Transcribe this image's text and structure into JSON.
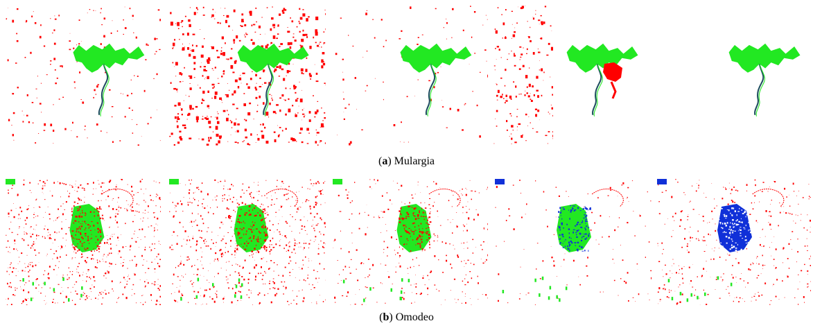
{
  "figure": {
    "subfigures": [
      {
        "letter": "a",
        "name": "Mulargia",
        "panel_count": 6,
        "panels": [
          {
            "noise": "medium",
            "target": "lake-green",
            "extra": "none"
          },
          {
            "noise": "heavy",
            "target": "lake-green",
            "extra": "none"
          },
          {
            "noise": "light",
            "target": "lake-green",
            "extra": "none"
          },
          {
            "noise": "medium-left",
            "target": "none",
            "extra": "none"
          },
          {
            "noise": "none",
            "target": "lake-green",
            "extra": "red-blob"
          },
          {
            "noise": "none",
            "target": "lake-green",
            "extra": "none"
          }
        ]
      },
      {
        "letter": "b",
        "name": "Omodeo",
        "panel_count": 5,
        "panels": [
          {
            "noise": "dense",
            "target": "lake-green",
            "extra": "none"
          },
          {
            "noise": "dense",
            "target": "lake-green",
            "extra": "none"
          },
          {
            "noise": "light",
            "target": "lake-green",
            "extra": "none"
          },
          {
            "noise": "sparse",
            "target": "lake-blue-green",
            "extra": "none"
          },
          {
            "noise": "medium",
            "target": "lake-blue",
            "extra": "none"
          }
        ]
      }
    ],
    "colors": {
      "green": "#22e822",
      "red": "#ff0000",
      "blue": "#1030d8",
      "dark": "#205060"
    }
  }
}
